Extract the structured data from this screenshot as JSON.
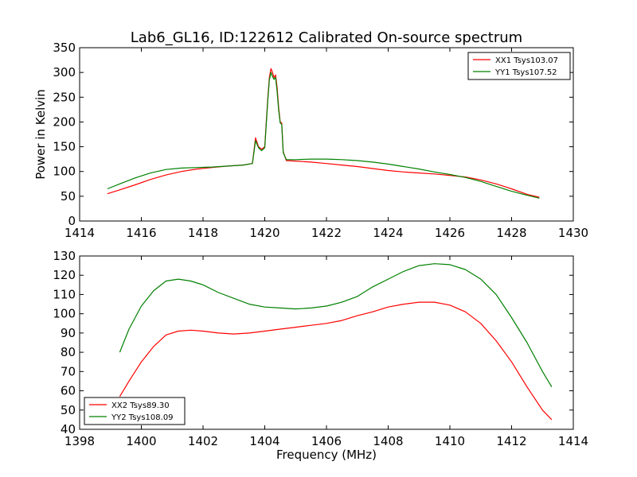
{
  "chart_data": [
    {
      "type": "line",
      "title": "Lab6_GL16, ID:122612 Calibrated On-source spectrum",
      "xlabel": "",
      "ylabel": "Power in Kelvin",
      "xlim": [
        1414,
        1430
      ],
      "ylim": [
        0,
        350
      ],
      "xticks": [
        1414,
        1416,
        1418,
        1420,
        1422,
        1424,
        1426,
        1428,
        1430
      ],
      "yticks": [
        0,
        50,
        100,
        150,
        200,
        250,
        300,
        350
      ],
      "legend_position": "top-right",
      "grid": false,
      "series": [
        {
          "name": "XX1 Tsys103.07",
          "color": "#ff0000",
          "x": [
            1414.9,
            1415.3,
            1415.8,
            1416.3,
            1416.8,
            1417.3,
            1417.8,
            1418.3,
            1418.8,
            1419.3,
            1419.6,
            1419.7,
            1419.8,
            1419.9,
            1420.0,
            1420.05,
            1420.1,
            1420.15,
            1420.2,
            1420.25,
            1420.3,
            1420.35,
            1420.4,
            1420.45,
            1420.5,
            1420.55,
            1420.6,
            1420.7,
            1421.0,
            1421.5,
            1422.0,
            1422.5,
            1423.0,
            1423.5,
            1424.0,
            1424.5,
            1425.0,
            1425.5,
            1426.0,
            1426.5,
            1427.0,
            1427.5,
            1428.0,
            1428.5,
            1428.9
          ],
          "y": [
            55,
            63,
            73,
            84,
            93,
            100,
            105,
            108,
            111,
            113,
            116,
            168,
            150,
            145,
            150,
            200,
            250,
            290,
            308,
            300,
            290,
            295,
            270,
            230,
            200,
            198,
            140,
            122,
            121,
            119,
            116,
            113,
            110,
            106,
            102,
            99,
            97,
            95,
            92,
            89,
            83,
            75,
            65,
            54,
            48
          ]
        },
        {
          "name": "YY1 Tsys107.52",
          "color": "#008000",
          "x": [
            1414.9,
            1415.3,
            1415.8,
            1416.3,
            1416.8,
            1417.3,
            1417.8,
            1418.3,
            1418.8,
            1419.3,
            1419.6,
            1419.7,
            1419.8,
            1419.9,
            1420.0,
            1420.05,
            1420.1,
            1420.15,
            1420.2,
            1420.25,
            1420.3,
            1420.35,
            1420.4,
            1420.45,
            1420.5,
            1420.55,
            1420.6,
            1420.7,
            1421.0,
            1421.5,
            1422.0,
            1422.5,
            1423.0,
            1423.5,
            1424.0,
            1424.5,
            1425.0,
            1425.5,
            1426.0,
            1426.5,
            1427.0,
            1427.5,
            1428.0,
            1428.5,
            1428.9
          ],
          "y": [
            65,
            75,
            87,
            97,
            104,
            107,
            108,
            109,
            111,
            113,
            116,
            162,
            148,
            142,
            148,
            195,
            245,
            285,
            300,
            292,
            286,
            290,
            262,
            225,
            198,
            195,
            138,
            124,
            124,
            125,
            125,
            124,
            122,
            119,
            115,
            110,
            105,
            99,
            94,
            88,
            80,
            70,
            60,
            52,
            46
          ]
        }
      ]
    },
    {
      "type": "line",
      "title": "",
      "xlabel": "Frequency (MHz)",
      "ylabel": "",
      "xlim": [
        1398,
        1414
      ],
      "ylim": [
        40,
        130
      ],
      "xticks": [
        1398,
        1400,
        1402,
        1404,
        1406,
        1408,
        1410,
        1412,
        1414
      ],
      "yticks": [
        40,
        50,
        60,
        70,
        80,
        90,
        100,
        110,
        120,
        130
      ],
      "legend_position": "bottom-left",
      "grid": false,
      "series": [
        {
          "name": "XX2 Tsys89.30",
          "color": "#ff0000",
          "x": [
            1399.3,
            1399.6,
            1400.0,
            1400.4,
            1400.8,
            1401.2,
            1401.6,
            1402.0,
            1402.5,
            1403.0,
            1403.5,
            1404.0,
            1404.5,
            1405.0,
            1405.5,
            1406.0,
            1406.5,
            1407.0,
            1407.5,
            1408.0,
            1408.5,
            1409.0,
            1409.5,
            1410.0,
            1410.5,
            1411.0,
            1411.5,
            1412.0,
            1412.5,
            1413.0,
            1413.3
          ],
          "y": [
            57,
            65,
            75,
            83,
            89,
            91,
            91.5,
            91,
            90,
            89.5,
            90,
            91,
            92,
            93,
            94,
            95,
            96.5,
            99,
            101,
            103.5,
            105,
            106,
            106,
            104.5,
            101,
            95,
            86,
            75,
            62,
            50,
            45
          ]
        },
        {
          "name": "YY2 Tsys108.09",
          "color": "#008000",
          "x": [
            1399.3,
            1399.6,
            1400.0,
            1400.4,
            1400.8,
            1401.2,
            1401.6,
            1402.0,
            1402.5,
            1403.0,
            1403.5,
            1404.0,
            1404.5,
            1405.0,
            1405.5,
            1406.0,
            1406.5,
            1407.0,
            1407.5,
            1408.0,
            1408.5,
            1409.0,
            1409.5,
            1410.0,
            1410.5,
            1411.0,
            1411.5,
            1412.0,
            1412.5,
            1413.0,
            1413.3
          ],
          "y": [
            80,
            92,
            104,
            112,
            117,
            118,
            117,
            115,
            111,
            108,
            105,
            103.5,
            103,
            102.5,
            103,
            104,
            106,
            109,
            114,
            118,
            122,
            125,
            126,
            125.5,
            123,
            118,
            110,
            98,
            85,
            70,
            62
          ]
        }
      ]
    }
  ]
}
